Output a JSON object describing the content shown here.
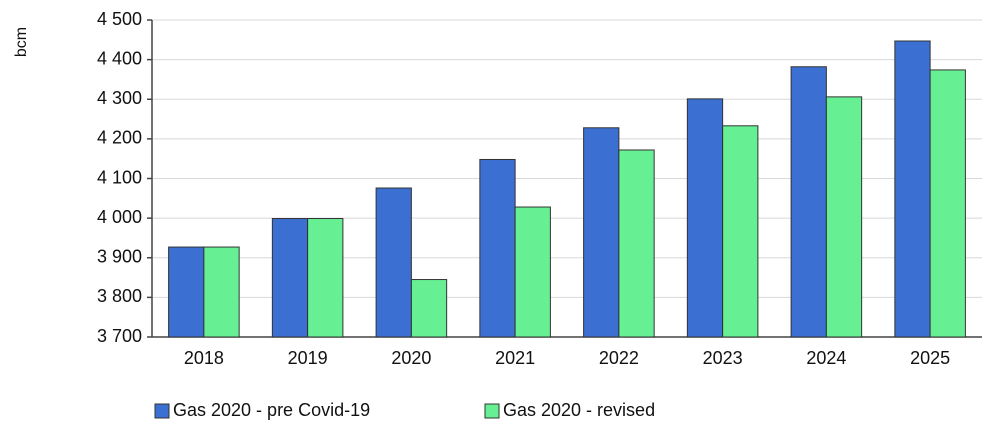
{
  "chart_data": {
    "type": "bar",
    "ylabel": "bcm",
    "categories": [
      "2018",
      "2019",
      "2020",
      "2021",
      "2022",
      "2023",
      "2024",
      "2025"
    ],
    "series": [
      {
        "name": "Gas 2020 - pre Covid-19",
        "color": "#3b6fd1",
        "values": [
          3927,
          3999,
          4076,
          4148,
          4228,
          4301,
          4382,
          4447
        ]
      },
      {
        "name": "Gas 2020 - revised",
        "color": "#66f093",
        "values": [
          3927,
          3999,
          3845,
          4028,
          4172,
          4233,
          4306,
          4374
        ]
      }
    ],
    "ylim": [
      3700,
      4500
    ],
    "yticks": [
      {
        "value": 3700,
        "label": "3 700"
      },
      {
        "value": 3800,
        "label": "3 800"
      },
      {
        "value": 3900,
        "label": "3 900"
      },
      {
        "value": 4000,
        "label": "4 000"
      },
      {
        "value": 4100,
        "label": "4 100"
      },
      {
        "value": 4200,
        "label": "4 200"
      },
      {
        "value": 4300,
        "label": "4 300"
      },
      {
        "value": 4400,
        "label": "4 400"
      },
      {
        "value": 4500,
        "label": "4 500"
      }
    ],
    "grid": true,
    "legend": "bottom"
  }
}
